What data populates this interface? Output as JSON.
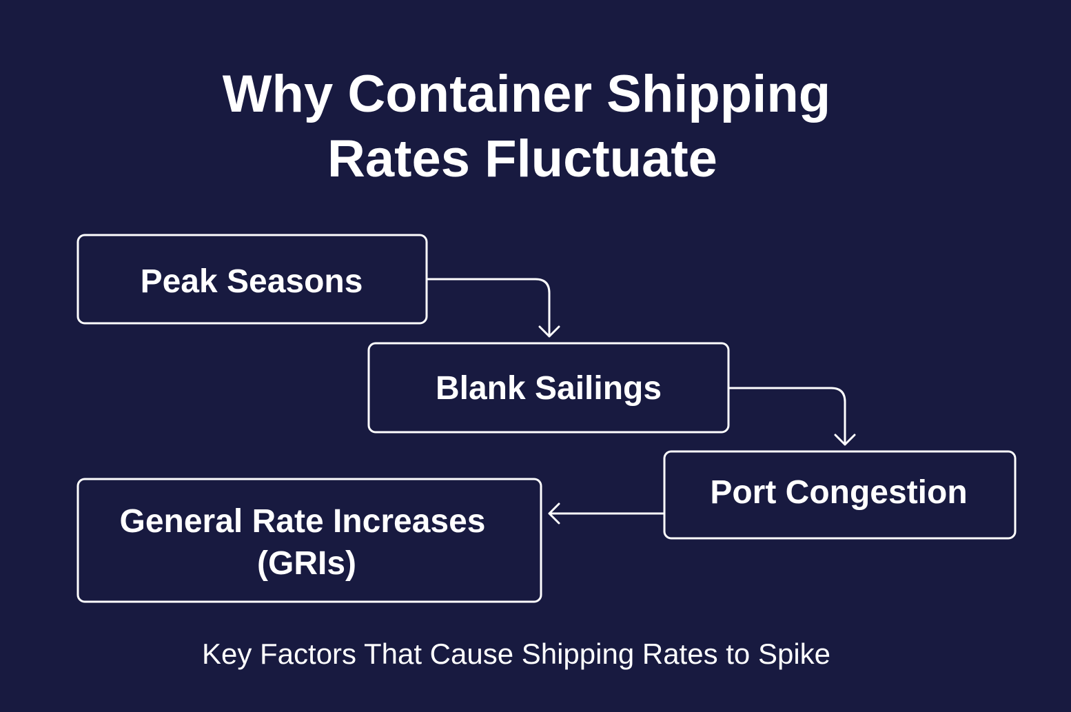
{
  "title": {
    "lines": [
      "Why Container Shipping",
      "Rates Fluctuate"
    ]
  },
  "nodes": [
    {
      "label": [
        "Peak Seasons"
      ]
    },
    {
      "label": [
        "Blank Sailings"
      ]
    },
    {
      "label": [
        "Port Congestion"
      ]
    },
    {
      "label": [
        "General Rate Increases",
        "(GRIs)"
      ]
    }
  ],
  "caption": "Key Factors That Cause Shipping Rates to Spike"
}
